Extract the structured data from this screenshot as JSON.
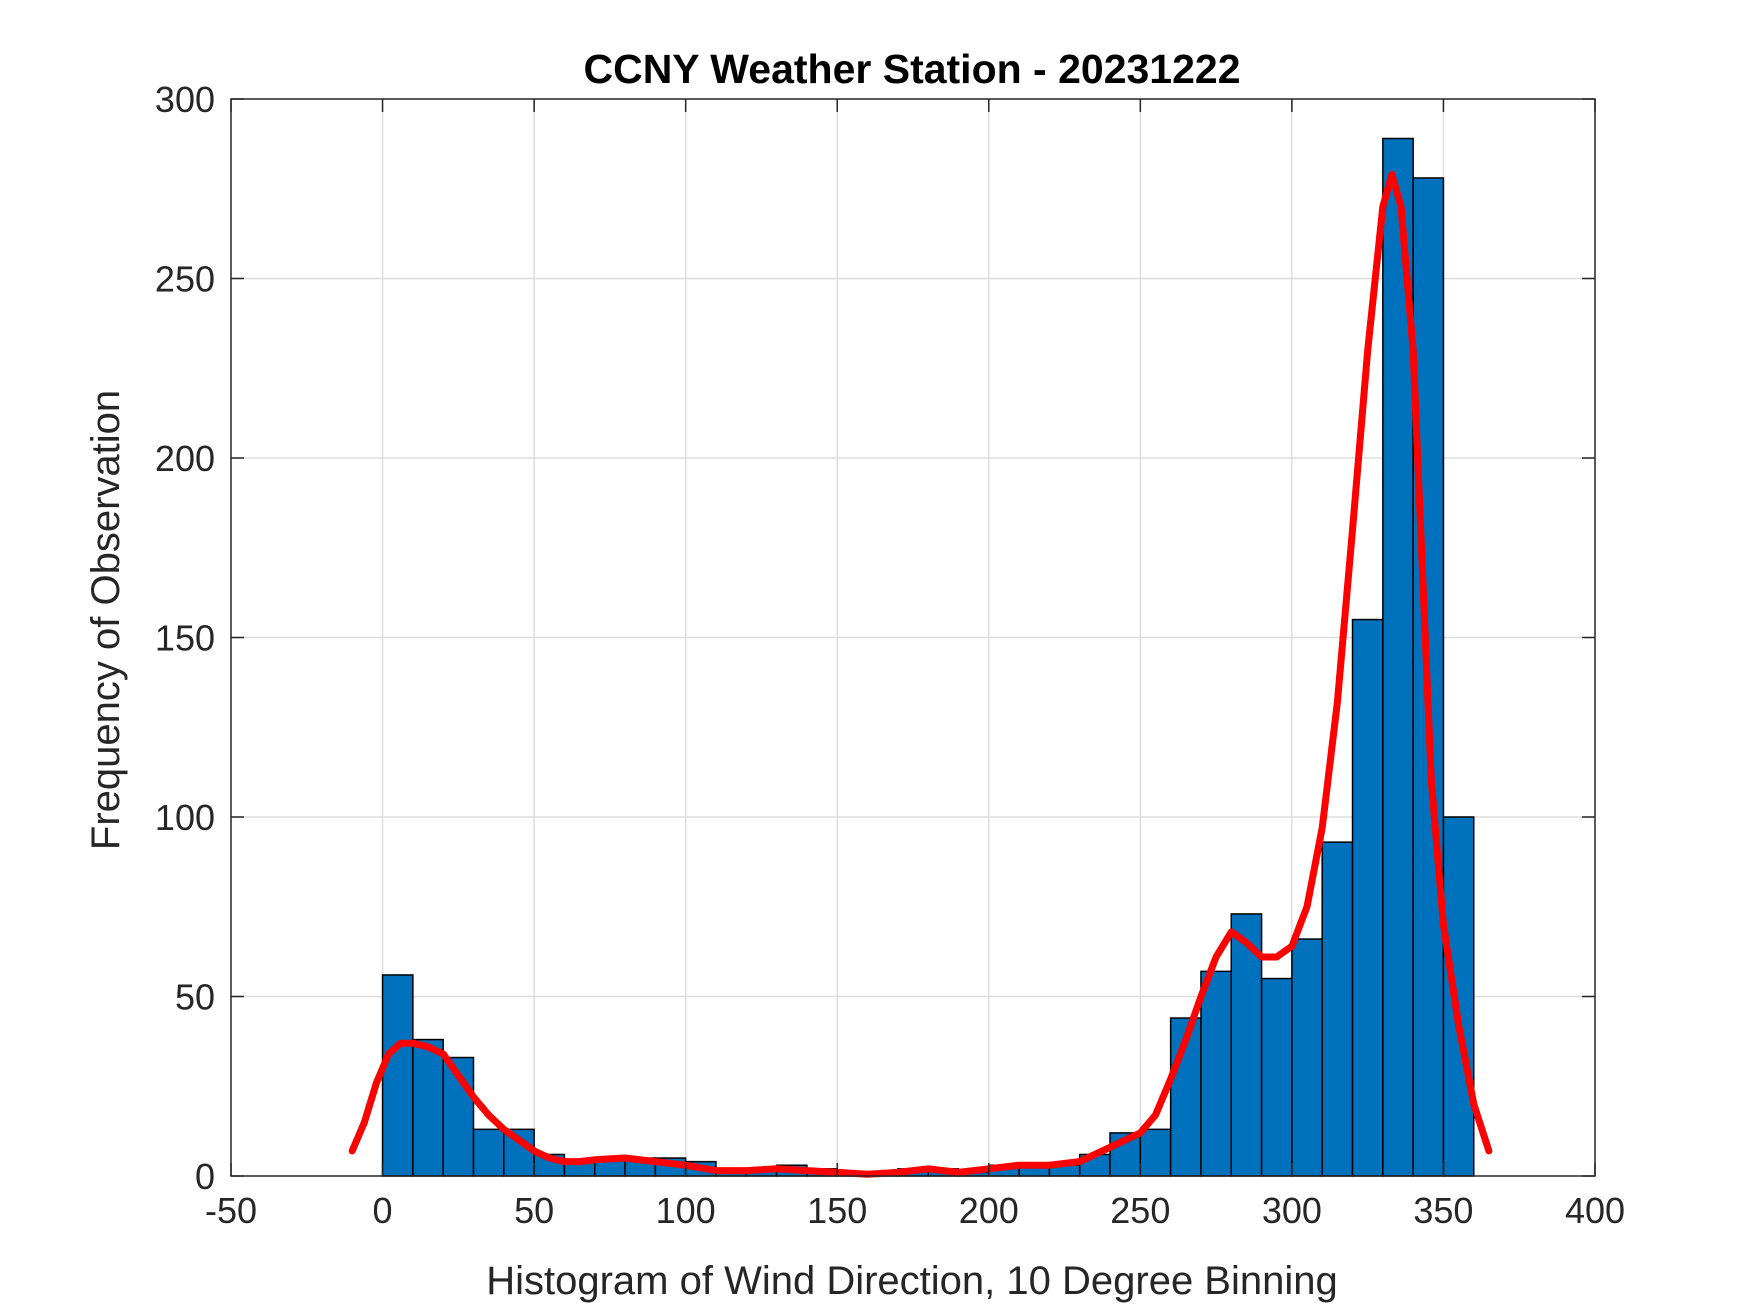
{
  "chart_data": {
    "type": "bar",
    "title": "CCNY Weather Station - 20231222",
    "xlabel": "Histogram of Wind Direction, 10 Degree Binning",
    "ylabel": "Frequency of Observation",
    "xlim": [
      -50,
      400
    ],
    "ylim": [
      0,
      300
    ],
    "xticks": [
      -50,
      0,
      50,
      100,
      150,
      200,
      250,
      300,
      350,
      400
    ],
    "yticks": [
      0,
      50,
      100,
      150,
      200,
      250,
      300
    ],
    "grid": true,
    "legend": "none",
    "bin_width": 10,
    "bin_edges_start": [
      0,
      10,
      20,
      30,
      40,
      50,
      60,
      70,
      80,
      90,
      100,
      110,
      120,
      130,
      140,
      150,
      160,
      170,
      180,
      190,
      200,
      210,
      220,
      230,
      240,
      250,
      260,
      270,
      280,
      290,
      300,
      310,
      320,
      330,
      340,
      350
    ],
    "values": [
      56,
      38,
      33,
      13,
      13,
      6,
      4,
      5,
      5,
      5,
      4,
      2,
      2,
      3,
      2,
      1,
      1,
      2,
      2,
      1,
      3,
      3,
      3,
      6,
      12,
      13,
      44,
      57,
      73,
      55,
      66,
      93,
      155,
      289,
      278,
      100
    ],
    "density_curve": {
      "x": [
        -10,
        -6,
        -2,
        2,
        6,
        10,
        15,
        20,
        25,
        30,
        35,
        40,
        45,
        50,
        55,
        60,
        65,
        70,
        80,
        90,
        100,
        110,
        120,
        130,
        140,
        150,
        160,
        170,
        180,
        190,
        200,
        210,
        220,
        230,
        240,
        250,
        255,
        260,
        265,
        270,
        275,
        280,
        285,
        290,
        295,
        300,
        305,
        310,
        315,
        320,
        325,
        330,
        333,
        336,
        340,
        343,
        346,
        350,
        355,
        360,
        365
      ],
      "y": [
        7,
        15,
        26,
        34,
        37,
        37,
        36,
        34,
        28,
        22,
        17,
        13,
        10,
        7,
        5,
        4,
        4,
        4.5,
        5,
        4,
        3,
        1.5,
        1.5,
        2,
        1.5,
        1,
        0.5,
        1,
        2,
        1,
        2,
        3,
        3,
        4,
        8,
        12,
        17,
        27,
        38,
        50,
        61,
        68,
        65,
        61,
        61,
        64,
        75,
        97,
        132,
        180,
        230,
        270,
        279,
        270,
        230,
        170,
        110,
        70,
        42,
        20,
        7
      ]
    },
    "colors": {
      "bars": "#0072BD",
      "bar_edge": "#000000",
      "curve": "#FF0000",
      "grid": "#dddddd",
      "axes": "#262626"
    }
  }
}
